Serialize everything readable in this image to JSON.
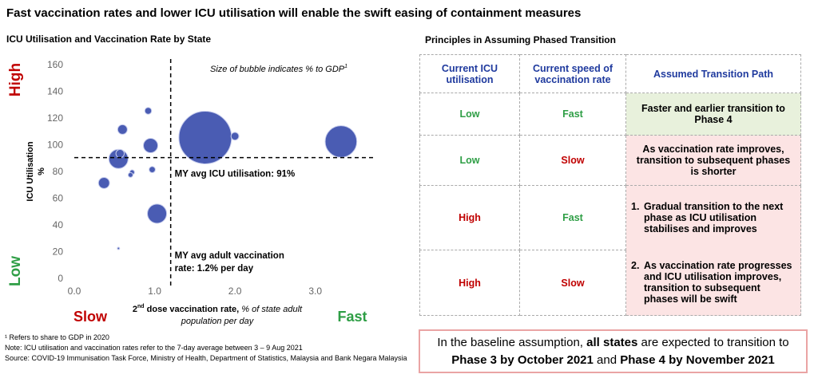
{
  "title": "Fast vaccination rates and lower ICU utilisation will enable the swift easing of containment measures",
  "chart_data": {
    "type": "scatter",
    "title": "ICU Utilisation and Vaccination Rate by State",
    "note": "Size of bubble indicates % to GDP",
    "note_sup": "1",
    "y_label": "ICU Utilisation",
    "y_label_unit": "%",
    "x_label_lead": "2",
    "x_label_sup": "nd",
    "x_label_main": " dose vaccination rate, ",
    "x_label_unit": [
      "% of state adult",
      "population per day"
    ],
    "y_high": "High",
    "y_low": "Low",
    "x_slow": "Slow",
    "x_fast": "Fast",
    "color": "#4a5cb3",
    "x": [
      0.92,
      0.6,
      0.95,
      1.63,
      2.0,
      3.32,
      0.55,
      0.57,
      0.97,
      0.72,
      0.7,
      0.37,
      1.03,
      0.55
    ],
    "values": [
      126,
      112,
      100,
      106,
      107,
      103,
      90,
      94,
      82,
      80,
      78,
      72,
      49,
      23
    ],
    "sizes": [
      0.6,
      1.2,
      2.7,
      36,
      0.8,
      13,
      4.8,
      0.9,
      0.5,
      0.3,
      0.3,
      1.6,
      4.8,
      0.07
    ],
    "xlim": [
      0,
      3.6
    ],
    "ylim": [
      0,
      160
    ],
    "xticks": [
      {
        "value": 0,
        "label": "0.0"
      },
      {
        "value": 1,
        "label": "1.0"
      },
      {
        "value": 2,
        "label": "2.0"
      },
      {
        "value": 3,
        "label": "3.0"
      }
    ],
    "yticks": [
      0,
      20,
      40,
      60,
      80,
      100,
      120,
      140,
      160
    ],
    "hline": 91,
    "vline": 1.2,
    "hline_label": "MY avg ICU utilisation: 91%",
    "vline_label": [
      "MY avg adult vaccination",
      "rate: 1.2% per day"
    ]
  },
  "table": {
    "title": "Principles in Assuming Phased Transition",
    "headers": [
      "Current ICU utilisation",
      "Current speed of vaccination rate",
      "Assumed Transition Path"
    ],
    "rows": [
      {
        "icu": "Low",
        "speed": "Fast",
        "path": "Faster and earlier transition to Phase 4"
      },
      {
        "icu": "Low",
        "speed": "Slow",
        "path": "As vaccination rate improves, transition to subsequent phases is shorter"
      },
      {
        "icu": "High",
        "speed": "Fast",
        "marker": "1.",
        "path": "Gradual transition to the next phase as ICU utilisation stabilises and improves"
      },
      {
        "icu": "High",
        "speed": "Slow",
        "marker": "2.",
        "path": "As vaccination rate progresses and ICU utilisation improves, transition to subsequent phases will be swift"
      }
    ]
  },
  "callout": {
    "a": "In the baseline assumption, ",
    "b": "all states",
    "c": " are expected to transition to",
    "d": "Phase 3 by October 2021",
    "e": " and ",
    "f": "Phase 4 by November 2021"
  },
  "footnotes": [
    "¹ Refers to share to GDP in 2020",
    "Note: ICU utilisation and vaccination rates refer to the 7-day average between 3 – 9 Aug 2021",
    "Source: COVID-19 Immunisation Task Force, Ministry of Health, Department of Statistics, Malaysia and Bank Negara Malaysia"
  ]
}
